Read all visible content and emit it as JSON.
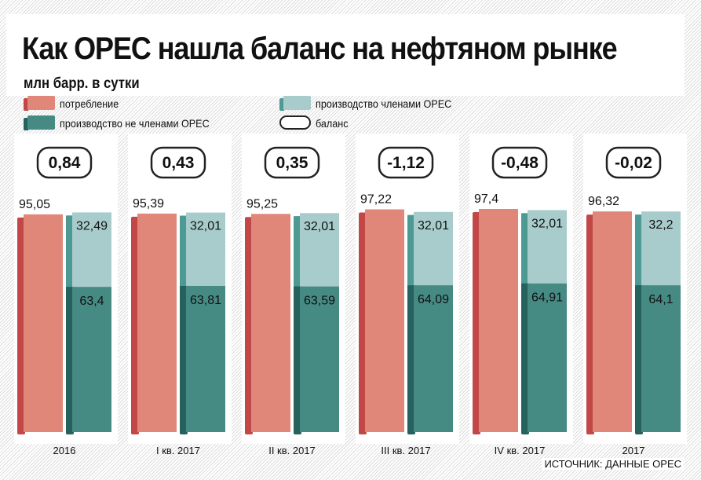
{
  "header": {
    "title": "Как OPEC нашла баланс на нефтяном рынке",
    "subtitle": "млн барр. в сутки"
  },
  "legend": {
    "consumption": "потребление",
    "opec_production": "производство членами OPEC",
    "non_opec_production": "производство не членами OPEC",
    "balance": "баланс"
  },
  "source": "ИСТОЧНИК: ДАННЫЕ OPEC",
  "colors": {
    "consumption_face": "#e0877a",
    "consumption_side": "#c24848",
    "opec_face": "#a8cccb",
    "opec_side": "#4d9a94",
    "non_opec_face": "#468a84",
    "non_opec_side": "#25615d"
  },
  "chart_data": {
    "type": "bar",
    "stacked_second_bar": true,
    "categories": [
      "2016",
      "I кв. 2017",
      "II кв. 2017",
      "III кв. 2017",
      "IV кв. 2017",
      "2017"
    ],
    "series": [
      {
        "name": "потребление",
        "values": [
          95.05,
          95.39,
          95.25,
          97.22,
          97.4,
          96.32
        ],
        "labels": [
          "95,05",
          "95,39",
          "95,25",
          "97,22",
          "97,4",
          "96,32"
        ]
      },
      {
        "name": "производство не членами OPEC",
        "values": [
          63.4,
          63.81,
          63.59,
          64.09,
          64.91,
          64.1
        ],
        "labels": [
          "63,4",
          "63,81",
          "63,59",
          "64,09",
          "64,91",
          "64,1"
        ]
      },
      {
        "name": "производство членами OPEC",
        "values": [
          32.49,
          32.01,
          32.01,
          32.01,
          32.01,
          32.2
        ],
        "labels": [
          "32,49",
          "32,01",
          "32,01",
          "32,01",
          "32,01",
          "32,2"
        ]
      }
    ],
    "balance": {
      "name": "баланс",
      "values": [
        0.84,
        0.43,
        0.35,
        -1.12,
        -0.48,
        -0.02
      ],
      "labels": [
        "0,84",
        "0,43",
        "0,35",
        "-1,12",
        "-0,48",
        "-0,02"
      ]
    },
    "ylim": [
      0,
      97.4
    ]
  }
}
